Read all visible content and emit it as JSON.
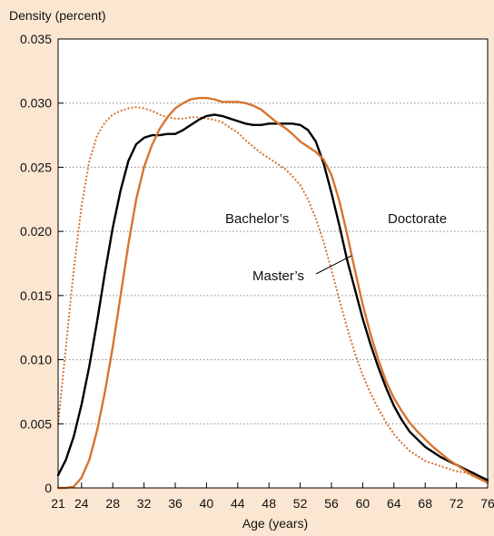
{
  "chart_data": {
    "type": "line",
    "ylabel": "Density (percent)",
    "xlabel": "Age (years)",
    "xlim": [
      21,
      76
    ],
    "ylim": [
      0,
      0.035
    ],
    "x_ticks": [
      21,
      24,
      28,
      32,
      36,
      40,
      44,
      48,
      52,
      56,
      60,
      64,
      68,
      72,
      76
    ],
    "y_ticks": [
      "0",
      "0.005",
      "0.010",
      "0.015",
      "0.020",
      "0.025",
      "0.030",
      "0.035"
    ],
    "y_tick_values": [
      0,
      0.005,
      0.01,
      0.015,
      0.02,
      0.025,
      0.03,
      0.035
    ],
    "grid": "horizontal dotted at 0.005 intervals",
    "series": [
      {
        "name": "Bachelor’s",
        "color": "#d87430",
        "style": "dotted",
        "points": [
          [
            21,
            0.005
          ],
          [
            22,
            0.011
          ],
          [
            23,
            0.017
          ],
          [
            24,
            0.022
          ],
          [
            25,
            0.0255
          ],
          [
            26,
            0.0275
          ],
          [
            27,
            0.0285
          ],
          [
            28,
            0.0291
          ],
          [
            29,
            0.0294
          ],
          [
            30,
            0.0296
          ],
          [
            31,
            0.0297
          ],
          [
            32,
            0.0296
          ],
          [
            33,
            0.0294
          ],
          [
            34,
            0.0291
          ],
          [
            35,
            0.0289
          ],
          [
            36,
            0.0288
          ],
          [
            37,
            0.0288
          ],
          [
            38,
            0.0289
          ],
          [
            39,
            0.0289
          ],
          [
            40,
            0.0288
          ],
          [
            41,
            0.0287
          ],
          [
            42,
            0.0285
          ],
          [
            43,
            0.0281
          ],
          [
            44,
            0.0277
          ],
          [
            45,
            0.0271
          ],
          [
            46,
            0.0266
          ],
          [
            47,
            0.0261
          ],
          [
            48,
            0.0257
          ],
          [
            49,
            0.0253
          ],
          [
            50,
            0.0249
          ],
          [
            51,
            0.0243
          ],
          [
            52,
            0.0236
          ],
          [
            53,
            0.0225
          ],
          [
            54,
            0.021
          ],
          [
            55,
            0.0192
          ],
          [
            56,
            0.017
          ],
          [
            57,
            0.0147
          ],
          [
            58,
            0.0125
          ],
          [
            59,
            0.0105
          ],
          [
            60,
            0.0088
          ],
          [
            61,
            0.0074
          ],
          [
            62,
            0.0062
          ],
          [
            63,
            0.0051
          ],
          [
            64,
            0.0042
          ],
          [
            65,
            0.0035
          ],
          [
            66,
            0.0029
          ],
          [
            67,
            0.0025
          ],
          [
            68,
            0.0021
          ],
          [
            69,
            0.0019
          ],
          [
            70,
            0.0017
          ],
          [
            71,
            0.0015
          ],
          [
            72,
            0.0013
          ],
          [
            73,
            0.0012
          ],
          [
            74,
            0.001
          ],
          [
            75,
            0.0008
          ],
          [
            76,
            0.0005
          ]
        ]
      },
      {
        "name": "Master’s",
        "color": "#000000",
        "style": "solid",
        "points": [
          [
            21,
            0.001
          ],
          [
            22,
            0.0022
          ],
          [
            23,
            0.004
          ],
          [
            24,
            0.0065
          ],
          [
            25,
            0.0095
          ],
          [
            26,
            0.013
          ],
          [
            27,
            0.0168
          ],
          [
            28,
            0.0203
          ],
          [
            29,
            0.0232
          ],
          [
            30,
            0.0255
          ],
          [
            31,
            0.0268
          ],
          [
            32,
            0.0273
          ],
          [
            33,
            0.0275
          ],
          [
            34,
            0.0275
          ],
          [
            35,
            0.0276
          ],
          [
            36,
            0.0276
          ],
          [
            37,
            0.0279
          ],
          [
            38,
            0.0283
          ],
          [
            39,
            0.0287
          ],
          [
            40,
            0.029
          ],
          [
            41,
            0.0291
          ],
          [
            42,
            0.029
          ],
          [
            43,
            0.0288
          ],
          [
            44,
            0.0286
          ],
          [
            45,
            0.0284
          ],
          [
            46,
            0.0283
          ],
          [
            47,
            0.0283
          ],
          [
            48,
            0.0284
          ],
          [
            49,
            0.0284
          ],
          [
            50,
            0.0284
          ],
          [
            51,
            0.0284
          ],
          [
            52,
            0.0283
          ],
          [
            53,
            0.0279
          ],
          [
            54,
            0.027
          ],
          [
            55,
            0.0253
          ],
          [
            56,
            0.023
          ],
          [
            57,
            0.0205
          ],
          [
            58,
            0.0178
          ],
          [
            59,
            0.0155
          ],
          [
            60,
            0.0132
          ],
          [
            61,
            0.0112
          ],
          [
            62,
            0.0094
          ],
          [
            63,
            0.0078
          ],
          [
            64,
            0.0064
          ],
          [
            65,
            0.0053
          ],
          [
            66,
            0.0044
          ],
          [
            67,
            0.0038
          ],
          [
            68,
            0.0032
          ],
          [
            69,
            0.0028
          ],
          [
            70,
            0.0024
          ],
          [
            71,
            0.0021
          ],
          [
            72,
            0.0018
          ],
          [
            73,
            0.0015
          ],
          [
            74,
            0.0012
          ],
          [
            75,
            0.0009
          ],
          [
            76,
            0.0006
          ]
        ]
      },
      {
        "name": "Doctorate",
        "color": "#d87430",
        "style": "solid",
        "points": [
          [
            21,
            0.0
          ],
          [
            22,
            0.0
          ],
          [
            23,
            0.0001
          ],
          [
            24,
            0.0008
          ],
          [
            25,
            0.0022
          ],
          [
            26,
            0.0045
          ],
          [
            27,
            0.0075
          ],
          [
            28,
            0.011
          ],
          [
            29,
            0.015
          ],
          [
            30,
            0.019
          ],
          [
            31,
            0.0225
          ],
          [
            32,
            0.025
          ],
          [
            33,
            0.0267
          ],
          [
            34,
            0.028
          ],
          [
            35,
            0.0289
          ],
          [
            36,
            0.0296
          ],
          [
            37,
            0.03
          ],
          [
            38,
            0.0303
          ],
          [
            39,
            0.0304
          ],
          [
            40,
            0.0304
          ],
          [
            41,
            0.0303
          ],
          [
            42,
            0.0301
          ],
          [
            43,
            0.0301
          ],
          [
            44,
            0.0301
          ],
          [
            45,
            0.03
          ],
          [
            46,
            0.0298
          ],
          [
            47,
            0.0295
          ],
          [
            48,
            0.029
          ],
          [
            49,
            0.0285
          ],
          [
            50,
            0.0281
          ],
          [
            51,
            0.0276
          ],
          [
            52,
            0.027
          ],
          [
            53,
            0.0266
          ],
          [
            54,
            0.0262
          ],
          [
            55,
            0.0256
          ],
          [
            56,
            0.0244
          ],
          [
            57,
            0.0224
          ],
          [
            58,
            0.0198
          ],
          [
            59,
            0.017
          ],
          [
            60,
            0.0143
          ],
          [
            61,
            0.012
          ],
          [
            62,
            0.01
          ],
          [
            63,
            0.0083
          ],
          [
            64,
            0.007
          ],
          [
            65,
            0.006
          ],
          [
            66,
            0.0051
          ],
          [
            67,
            0.0044
          ],
          [
            68,
            0.0038
          ],
          [
            69,
            0.0032
          ],
          [
            70,
            0.0027
          ],
          [
            71,
            0.0022
          ],
          [
            72,
            0.0018
          ],
          [
            73,
            0.0014
          ],
          [
            74,
            0.001
          ],
          [
            75,
            0.0007
          ],
          [
            76,
            0.0004
          ]
        ]
      }
    ]
  }
}
